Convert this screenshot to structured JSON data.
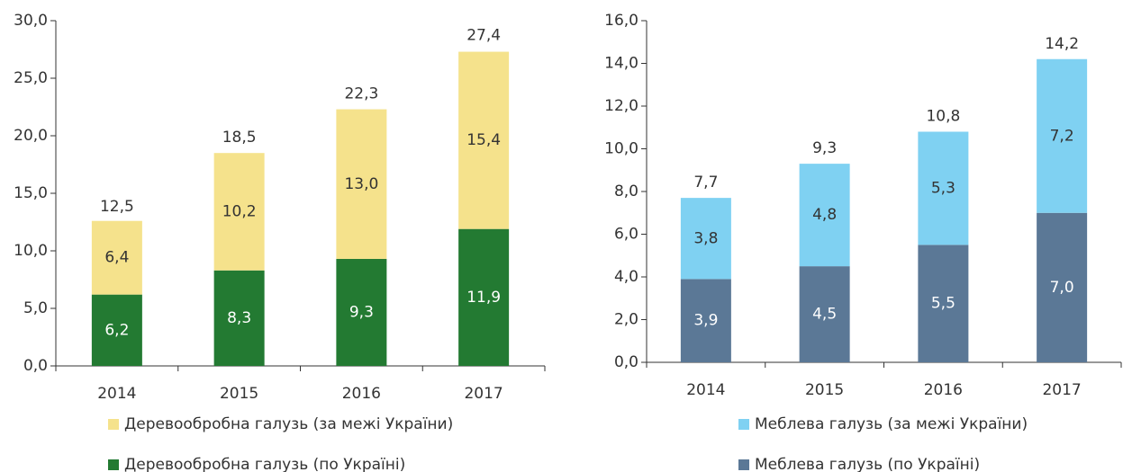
{
  "chart_data": [
    {
      "type": "stacked_bar",
      "categories": [
        "2014",
        "2015",
        "2016",
        "2017"
      ],
      "series": [
        {
          "name": "Деревообробна галузь (по Україні)",
          "color": "#237a32",
          "values": [
            6.2,
            8.3,
            9.3,
            11.9
          ],
          "value_labels": [
            "6,2",
            "8,3",
            "9,3",
            "11,9"
          ]
        },
        {
          "name": "Деревообробна галузь (за межі України)",
          "color": "#f5e28c",
          "values": [
            6.4,
            10.2,
            13.0,
            15.4
          ],
          "value_labels": [
            "6,4",
            "10,2",
            "13,0",
            "15,4"
          ]
        }
      ],
      "totals": [
        12.5,
        18.5,
        22.3,
        27.4
      ],
      "total_labels": [
        "12,5",
        "18,5",
        "22,3",
        "27,4"
      ],
      "ylim": [
        0,
        30
      ],
      "yticks": [
        {
          "value": 0,
          "label": "0,0"
        },
        {
          "value": 5,
          "label": "5,0"
        },
        {
          "value": 10,
          "label": "10,0"
        },
        {
          "value": 15,
          "label": "15,0"
        },
        {
          "value": 20,
          "label": "20,0"
        },
        {
          "value": 25,
          "label": "25,0"
        },
        {
          "value": 30,
          "label": "30,0"
        }
      ],
      "grid": false,
      "legend": "bottom"
    },
    {
      "type": "stacked_bar",
      "categories": [
        "2014",
        "2015",
        "2016",
        "2017"
      ],
      "series": [
        {
          "name": "Меблева галузь (по Україні)",
          "color": "#5b7896",
          "values": [
            3.9,
            4.5,
            5.5,
            7.0
          ],
          "value_labels": [
            "3,9",
            "4,5",
            "5,5",
            "7,0"
          ]
        },
        {
          "name": "Меблева галузь (за межі України)",
          "color": "#7fd1f2",
          "values": [
            3.8,
            4.8,
            5.3,
            7.2
          ],
          "value_labels": [
            "3,8",
            "4,8",
            "5,3",
            "7,2"
          ]
        }
      ],
      "totals": [
        7.7,
        9.3,
        10.8,
        14.2
      ],
      "total_labels": [
        "7,7",
        "9,3",
        "10,8",
        "14,2"
      ],
      "ylim": [
        0,
        16
      ],
      "yticks": [
        {
          "value": 0,
          "label": "0,0"
        },
        {
          "value": 2,
          "label": "2,0"
        },
        {
          "value": 4,
          "label": "4,0"
        },
        {
          "value": 6,
          "label": "6,0"
        },
        {
          "value": 8,
          "label": "8,0"
        },
        {
          "value": 10,
          "label": "10,0"
        },
        {
          "value": 12,
          "label": "12,0"
        },
        {
          "value": 14,
          "label": "14,0"
        },
        {
          "value": 16,
          "label": "16,0"
        }
      ],
      "grid": false,
      "legend": "bottom"
    }
  ]
}
